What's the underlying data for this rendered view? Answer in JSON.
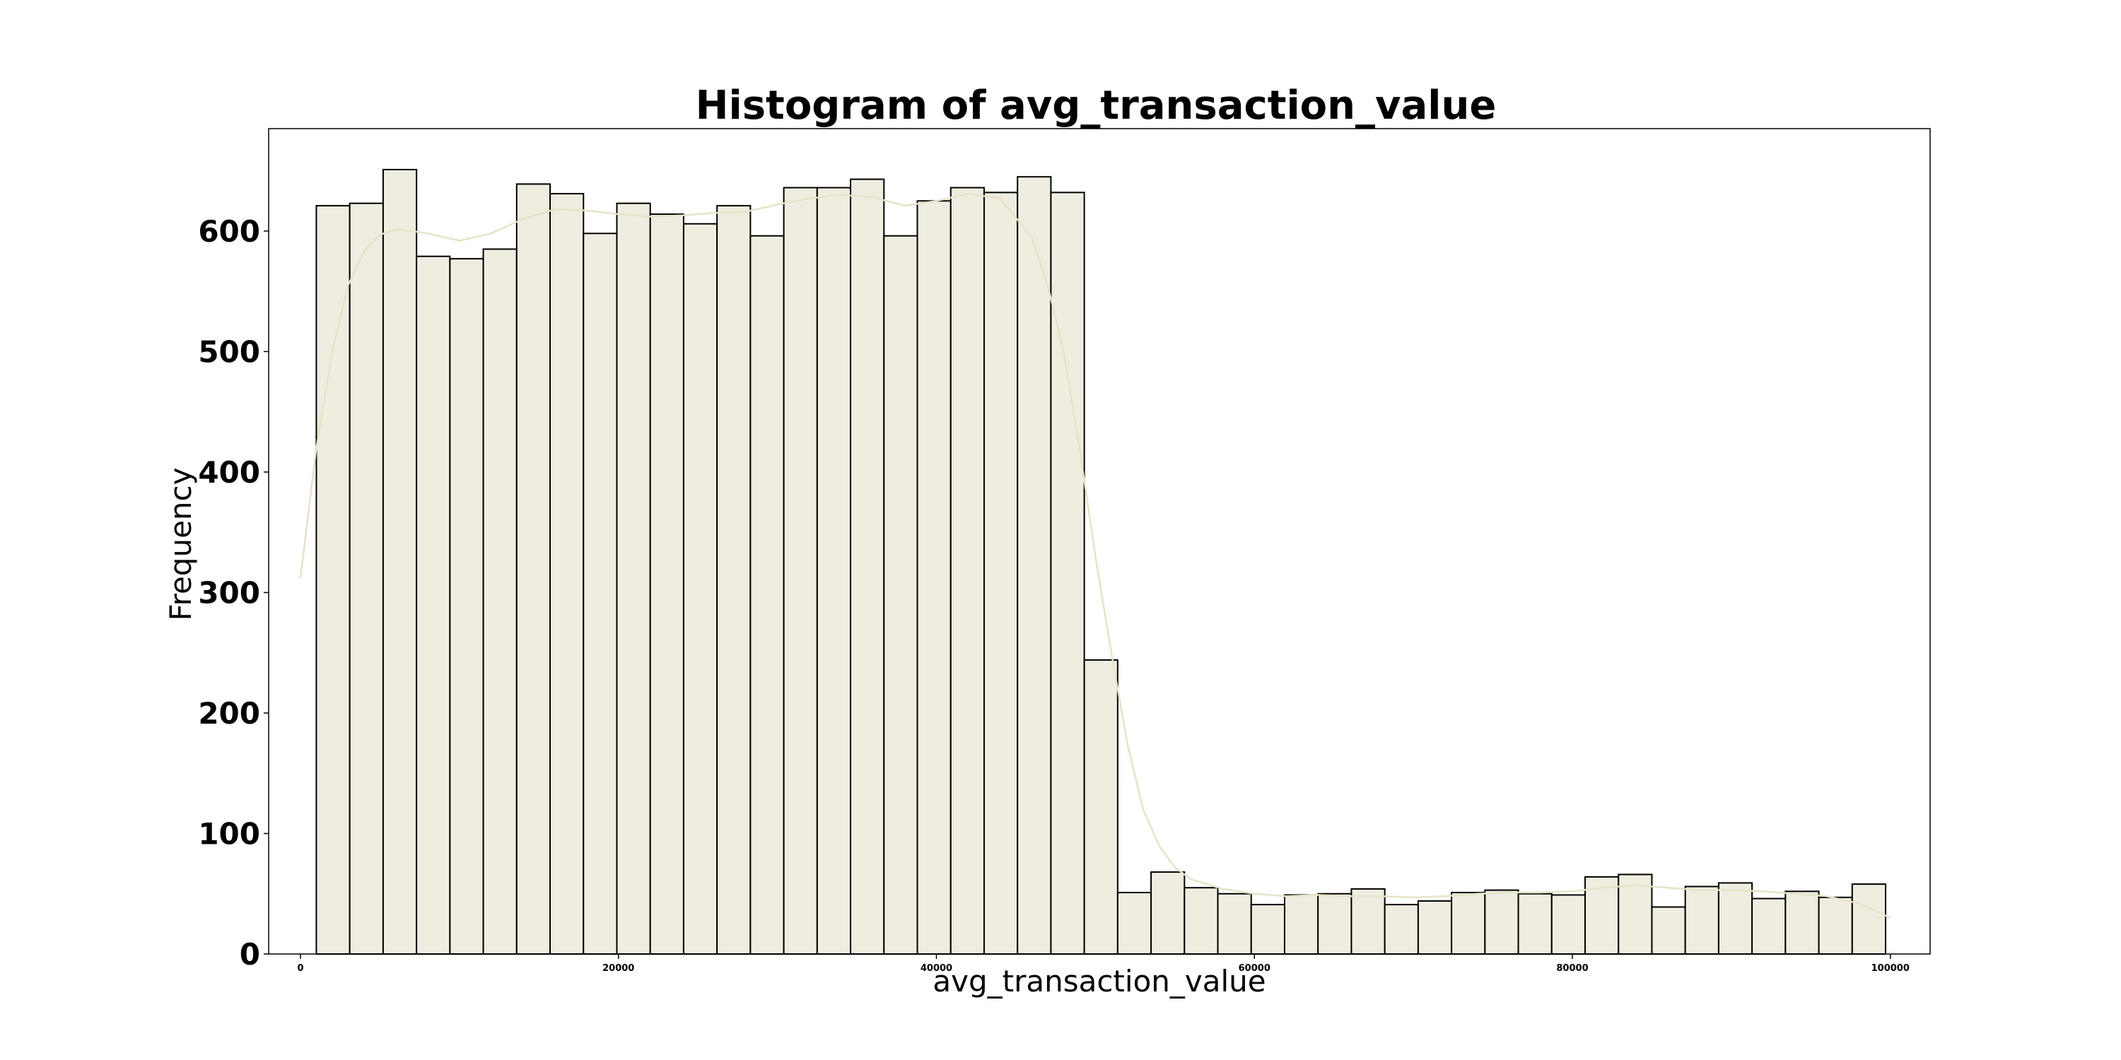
{
  "chart_data": {
    "type": "bar",
    "title": "Histogram of avg_transaction_value",
    "xlabel": "avg_transaction_value",
    "ylabel": "Frequency",
    "xlim": [
      -2000,
      102500
    ],
    "ylim": [
      0,
      685
    ],
    "x_ticks": [
      0,
      20000,
      40000,
      60000,
      80000,
      100000
    ],
    "x_tick_labels": [
      "0",
      "20000",
      "40000",
      "60000",
      "80000",
      "100000"
    ],
    "y_ticks": [
      0,
      100,
      200,
      300,
      400,
      500,
      600
    ],
    "y_tick_labels": [
      "0",
      "100",
      "200",
      "300",
      "400",
      "500",
      "600"
    ],
    "grid": false,
    "bar_color": "#efede0",
    "bar_edge_color": "#000000",
    "kde_color": "#e6e3c8",
    "series": [
      {
        "bin_start": 1000,
        "bin_width": 2100,
        "values": [
          621,
          623,
          651,
          579,
          577,
          585,
          639,
          631,
          598,
          623,
          614,
          606,
          621,
          596,
          636,
          636,
          643,
          596,
          625,
          636,
          632,
          645,
          632,
          244,
          51,
          68,
          55,
          50,
          41,
          49,
          50,
          54,
          41,
          44,
          51,
          53,
          50,
          49,
          64,
          66,
          39,
          56,
          59,
          46,
          52,
          47,
          58
        ]
      }
    ],
    "kde": {
      "x": [
        0,
        1000,
        2000,
        3000,
        4000,
        5000,
        6000,
        7000,
        8000,
        10000,
        12000,
        14000,
        16000,
        18000,
        20000,
        22000,
        24000,
        26000,
        28000,
        30000,
        32000,
        34000,
        36000,
        38000,
        40000,
        42000,
        44000,
        46000,
        47000,
        48000,
        49000,
        50000,
        51000,
        52000,
        53000,
        54000,
        55000,
        56000,
        58000,
        60000,
        62000,
        64000,
        66000,
        68000,
        70000,
        72000,
        74000,
        76000,
        78000,
        80000,
        82000,
        84000,
        86000,
        88000,
        90000,
        92000,
        94000,
        96000,
        98000,
        100000
      ],
      "y": [
        312,
        420,
        500,
        555,
        583,
        597,
        601,
        600,
        598,
        592,
        598,
        610,
        618,
        617,
        614,
        612,
        613,
        615,
        616,
        622,
        627,
        630,
        628,
        621,
        625,
        631,
        627,
        595,
        555,
        500,
        420,
        330,
        250,
        175,
        120,
        90,
        72,
        62,
        54,
        50,
        48,
        49,
        48,
        48,
        47,
        48,
        50,
        51,
        51,
        52,
        55,
        57,
        55,
        53,
        53,
        52,
        50,
        48,
        42,
        30
      ]
    }
  }
}
